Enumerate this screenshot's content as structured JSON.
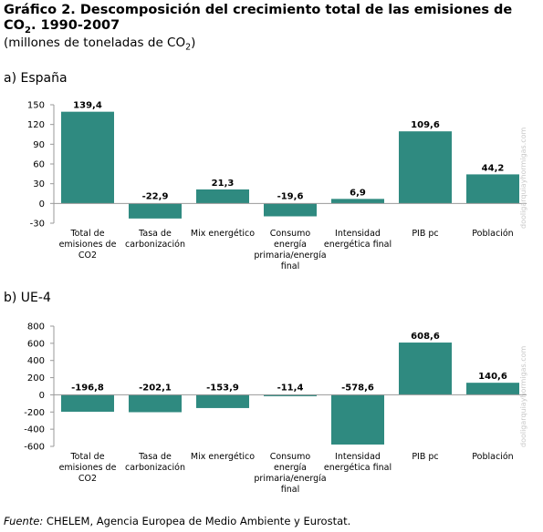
{
  "header": {
    "title_main": "Gráfico 2. Descomposición del crecimiento total de las emisiones de CO",
    "title_sub": "2",
    "title_end": ". 1990-2007",
    "subtitle_main": "(millones de toneladas de CO",
    "subtitle_sub": "2",
    "subtitle_end": ")"
  },
  "chart_data": [
    {
      "type": "bar",
      "panel_label": "a) España",
      "categories": [
        [
          "Total de",
          "emisiones de",
          "CO2"
        ],
        [
          "Tasa de",
          "carbonización"
        ],
        [
          "Mix energético"
        ],
        [
          "Consumo",
          "energía",
          "primaria/energía",
          "final"
        ],
        [
          "Intensidad",
          "energética final"
        ],
        [
          "PIB pc"
        ],
        [
          "Población"
        ]
      ],
      "values": [
        139.4,
        -22.9,
        21.3,
        -19.6,
        6.9,
        109.6,
        44.2
      ],
      "value_labels": [
        "139,4",
        "-22,9",
        "21,3",
        "-19,6",
        "6,9",
        "109,6",
        "44,2"
      ],
      "yticks": [
        -30,
        0,
        30,
        60,
        90,
        120,
        150
      ],
      "ylim": [
        -30,
        150
      ],
      "bar_color": "#2f8a80",
      "watermark": "dooligarquiayhormigas.com"
    },
    {
      "type": "bar",
      "panel_label": "b) UE-4",
      "categories": [
        [
          "Total de",
          "emisiones de",
          "CO2"
        ],
        [
          "Tasa de",
          "carbonización"
        ],
        [
          "Mix energético"
        ],
        [
          "Consumo",
          "energía",
          "primaria/energía",
          "final"
        ],
        [
          "Intensidad",
          "energética final"
        ],
        [
          "PIB pc"
        ],
        [
          "Población"
        ]
      ],
      "values": [
        -196.8,
        -202.1,
        -153.9,
        -11.4,
        -578.6,
        608.6,
        140.6
      ],
      "value_labels": [
        "-196,8",
        "-202,1",
        "-153,9",
        "-11,4",
        "-578,6",
        "608,6",
        "140,6"
      ],
      "yticks": [
        -600,
        -400,
        -200,
        0,
        200,
        400,
        600,
        800
      ],
      "ylim": [
        -600,
        800
      ],
      "bar_color": "#2f8a80",
      "watermark": "dooligarquiayhormigas.com"
    }
  ],
  "source": {
    "label": "Fuente:",
    "text": " CHELEM, Agencia Europea de Medio Ambiente y Eurostat."
  }
}
